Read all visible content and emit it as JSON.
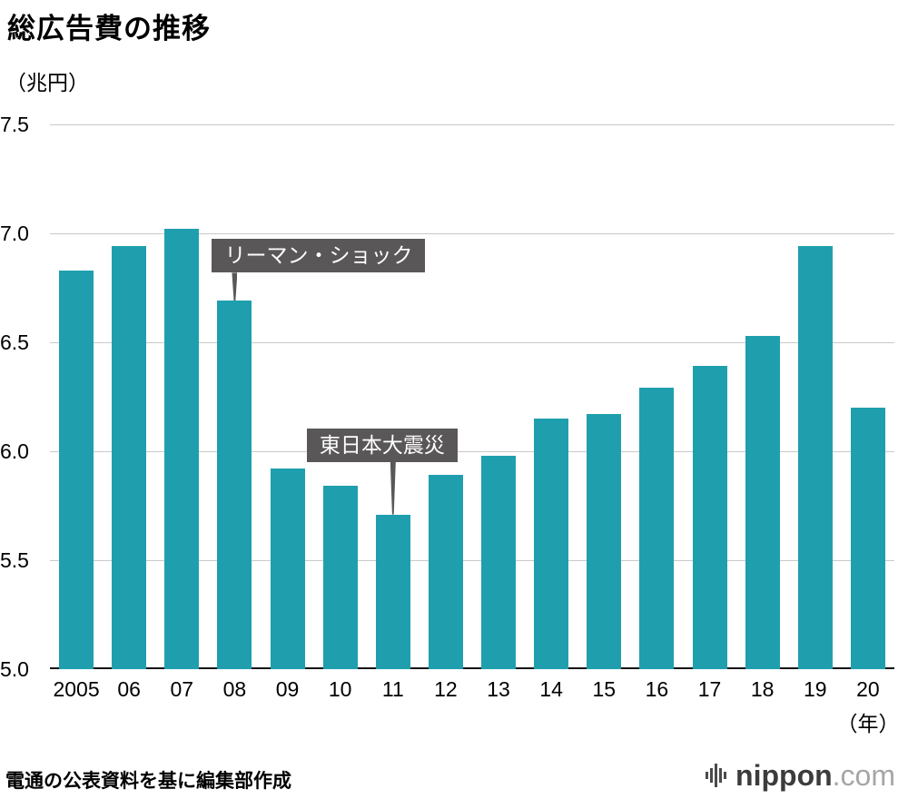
{
  "title": "総広告費の推移",
  "unit_label": "（兆円）",
  "footer": {
    "source": "電通の公表資料を基に編集部作成"
  },
  "logo": {
    "name": "nippon",
    "suffix": ".com",
    "icon": "soundbars-icon"
  },
  "chart_data": {
    "type": "bar",
    "title": "総広告費の推移",
    "categories": [
      "2005",
      "06",
      "07",
      "08",
      "09",
      "10",
      "11",
      "12",
      "13",
      "14",
      "15",
      "16",
      "17",
      "18",
      "19",
      "20"
    ],
    "values": [
      6.83,
      6.94,
      7.02,
      6.69,
      5.92,
      5.84,
      5.71,
      5.89,
      5.98,
      6.15,
      6.17,
      6.29,
      6.39,
      6.53,
      6.94,
      6.2
    ],
    "xlabel": "（年）",
    "ylabel": "（兆円）",
    "ylim": [
      5.0,
      7.5
    ],
    "ytick_step": 0.5,
    "grid": true,
    "bar_color": "#1f9fae",
    "annotation_color": "#595757",
    "annotations": [
      {
        "text": "リーマン・ショック",
        "target_index": 3
      },
      {
        "text": "東日本大震災",
        "target_index": 6
      }
    ]
  }
}
